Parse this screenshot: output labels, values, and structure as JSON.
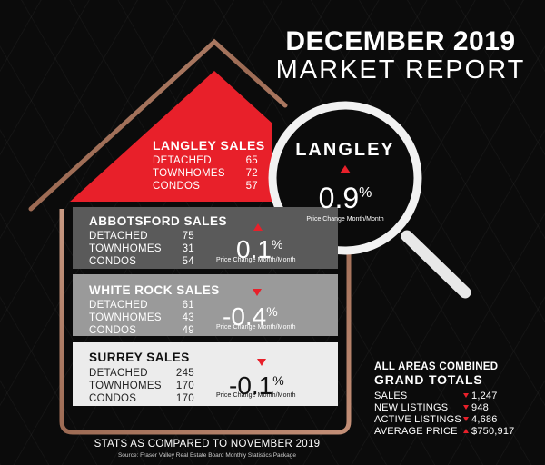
{
  "header": {
    "line1": "DECEMBER 2019",
    "line2": "MARKET REPORT"
  },
  "sections": [
    {
      "title": "LANGLEY SALES",
      "rows": [
        {
          "label": "DETACHED",
          "value": "65"
        },
        {
          "label": "TOWNHOMES",
          "value": "72"
        },
        {
          "label": "CONDOS",
          "value": "57"
        }
      ]
    },
    {
      "title": "ABBOTSFORD SALES",
      "rows": [
        {
          "label": "DETACHED",
          "value": "75"
        },
        {
          "label": "TOWNHOMES",
          "value": "31"
        },
        {
          "label": "CONDOS",
          "value": "54"
        }
      ],
      "pct": "0.1",
      "direction": "up",
      "pct_label": "Price Change Month/Month"
    },
    {
      "title": "WHITE ROCK SALES",
      "rows": [
        {
          "label": "DETACHED",
          "value": "61"
        },
        {
          "label": "TOWNHOMES",
          "value": "43"
        },
        {
          "label": "CONDOS",
          "value": "49"
        }
      ],
      "pct": "-0.4",
      "direction": "down",
      "pct_label": "Price Change Month/Month"
    },
    {
      "title": "SURREY SALES",
      "rows": [
        {
          "label": "DETACHED",
          "value": "245"
        },
        {
          "label": "TOWNHOMES",
          "value": "170"
        },
        {
          "label": "CONDOS",
          "value": "170"
        }
      ],
      "pct": "-0.1",
      "direction": "down",
      "pct_label": "Price Change Month/Month"
    }
  ],
  "magnifier": {
    "name": "LANGLEY",
    "pct": "0.9",
    "direction": "up",
    "pct_label": "Price Change Month/Month"
  },
  "percent_sign": "%",
  "grand_totals": {
    "heading1": "ALL AREAS COMBINED",
    "heading2": "GRAND TOTALS",
    "rows": [
      {
        "label": "SALES",
        "value": "1,247",
        "direction": "down"
      },
      {
        "label": "NEW LISTINGS",
        "value": "948",
        "direction": "down"
      },
      {
        "label": "ACTIVE LISTINGS",
        "value": "4,686",
        "direction": "down"
      },
      {
        "label": "AVERAGE PRICE",
        "value": "$750,917",
        "direction": "up"
      }
    ]
  },
  "footer": {
    "stats_note": "STATS AS COMPARED TO NOVEMBER 2019",
    "source": "Source: Fraser Valley Real Estate Board Monthly Statistics Package"
  },
  "colors": {
    "accent_red": "#e8202a",
    "copper": "#b07a62",
    "dark_panel": "#5a5a5a",
    "mid_panel": "#9a9a9a",
    "light_panel": "#ececec"
  }
}
